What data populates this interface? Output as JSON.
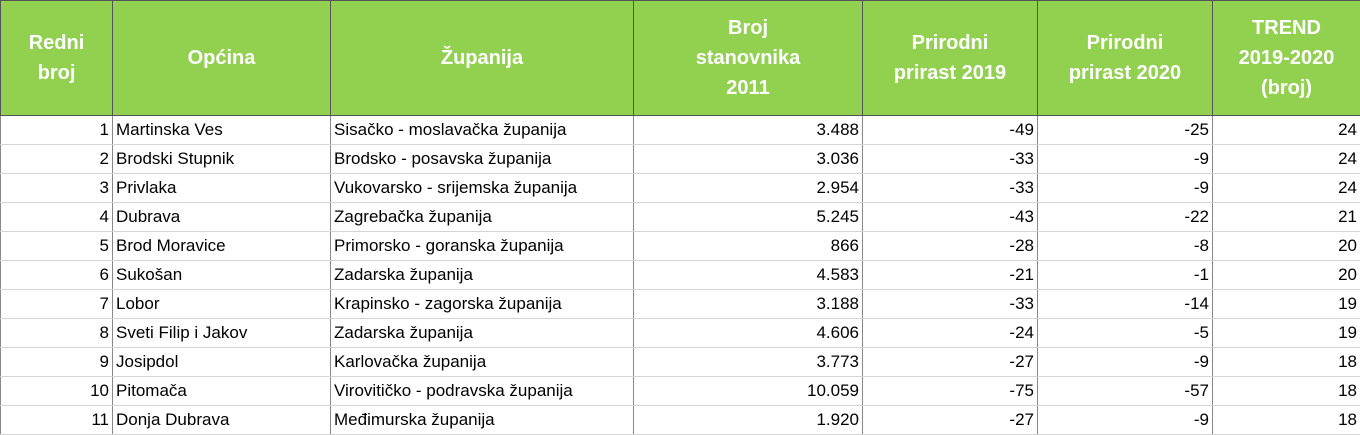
{
  "table": {
    "header": [
      [
        "Redni",
        "broj"
      ],
      [
        "Općina"
      ],
      [
        "Županija"
      ],
      [
        "Broj",
        "stanovnika",
        "2011"
      ],
      [
        "Prirodni",
        "prirast 2019"
      ],
      [
        "Prirodni",
        "prirast 2020"
      ],
      [
        "TREND",
        "2019-2020",
        "(broj)"
      ]
    ],
    "rows": [
      [
        "1",
        "Martinska Ves",
        "Sisačko - moslavačka županija",
        "3.488",
        "-49",
        "-25",
        "24"
      ],
      [
        "2",
        "Brodski Stupnik",
        "Brodsko - posavska županija",
        "3.036",
        "-33",
        "-9",
        "24"
      ],
      [
        "3",
        "Privlaka",
        "Vukovarsko - srijemska županija",
        "2.954",
        "-33",
        "-9",
        "24"
      ],
      [
        "4",
        "Dubrava",
        "Zagrebačka županija",
        "5.245",
        "-43",
        "-22",
        "21"
      ],
      [
        "5",
        "Brod Moravice",
        "Primorsko - goranska županija",
        "866",
        "-28",
        "-8",
        "20"
      ],
      [
        "6",
        "Sukošan",
        "Zadarska županija",
        "4.583",
        "-21",
        "-1",
        "20"
      ],
      [
        "7",
        "Lobor",
        "Krapinsko - zagorska županija",
        "3.188",
        "-33",
        "-14",
        "19"
      ],
      [
        "8",
        "Sveti Filip i Jakov",
        "Zadarska županija",
        "4.606",
        "-24",
        "-5",
        "19"
      ],
      [
        "9",
        "Josipdol",
        "Karlovačka županija",
        "3.773",
        "-27",
        "-9",
        "18"
      ],
      [
        "10",
        "Pitomača",
        "Virovitičko - podravska županija",
        "10.059",
        "-75",
        "-57",
        "18"
      ],
      [
        "11",
        "Donja Dubrava",
        "Međimurska županija",
        "1.920",
        "-27",
        "-9",
        "18"
      ]
    ]
  }
}
